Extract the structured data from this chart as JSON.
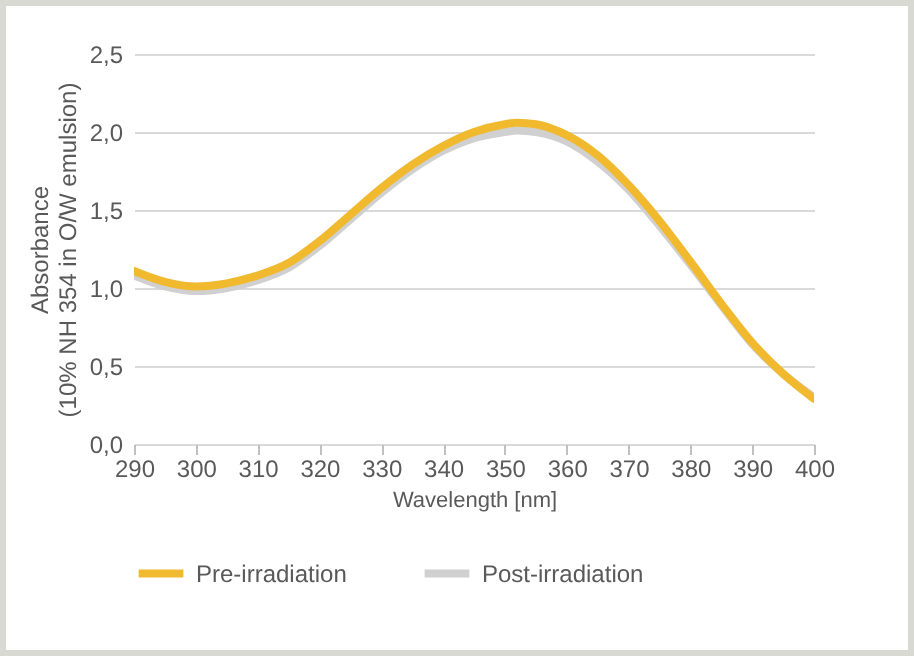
{
  "chart_data": {
    "type": "line",
    "xlabel": "Wavelength [nm]",
    "ylabel": "Absorbance\n(10% NH 354 in O/W emulsion)",
    "x": [
      290,
      295,
      300,
      305,
      310,
      315,
      320,
      325,
      330,
      335,
      340,
      345,
      350,
      352,
      355,
      360,
      365,
      370,
      375,
      380,
      385,
      390,
      395,
      400
    ],
    "series": [
      {
        "name": "Pre-irradiation",
        "color": "#f0b92e",
        "values": [
          1.11,
          1.04,
          1.01,
          1.03,
          1.08,
          1.16,
          1.3,
          1.47,
          1.64,
          1.79,
          1.91,
          2.0,
          2.05,
          2.06,
          2.05,
          1.98,
          1.85,
          1.66,
          1.43,
          1.17,
          0.9,
          0.65,
          0.45,
          0.29
        ]
      },
      {
        "name": "Post-irradiation",
        "color": "#d0d0d0",
        "values": [
          1.08,
          1.01,
          0.98,
          1.0,
          1.05,
          1.13,
          1.27,
          1.44,
          1.61,
          1.76,
          1.88,
          1.96,
          2.0,
          2.01,
          2.0,
          1.94,
          1.81,
          1.63,
          1.4,
          1.15,
          0.89,
          0.64,
          0.45,
          0.3
        ]
      }
    ],
    "xlim": [
      290,
      400
    ],
    "xticks": [
      290,
      300,
      310,
      320,
      330,
      340,
      350,
      360,
      370,
      380,
      390,
      400
    ],
    "ylim": [
      0,
      2.5
    ],
    "yticks": [
      {
        "value": 0,
        "label": "0,0"
      },
      {
        "value": 0.5,
        "label": "0,5"
      },
      {
        "value": 1,
        "label": "1,0"
      },
      {
        "value": 1.5,
        "label": "1,5"
      },
      {
        "value": 2,
        "label": "2,0"
      },
      {
        "value": 2.5,
        "label": "2,5"
      }
    ],
    "grid": "y",
    "legend": "bottom",
    "marker": "none",
    "line_style": "solid"
  }
}
